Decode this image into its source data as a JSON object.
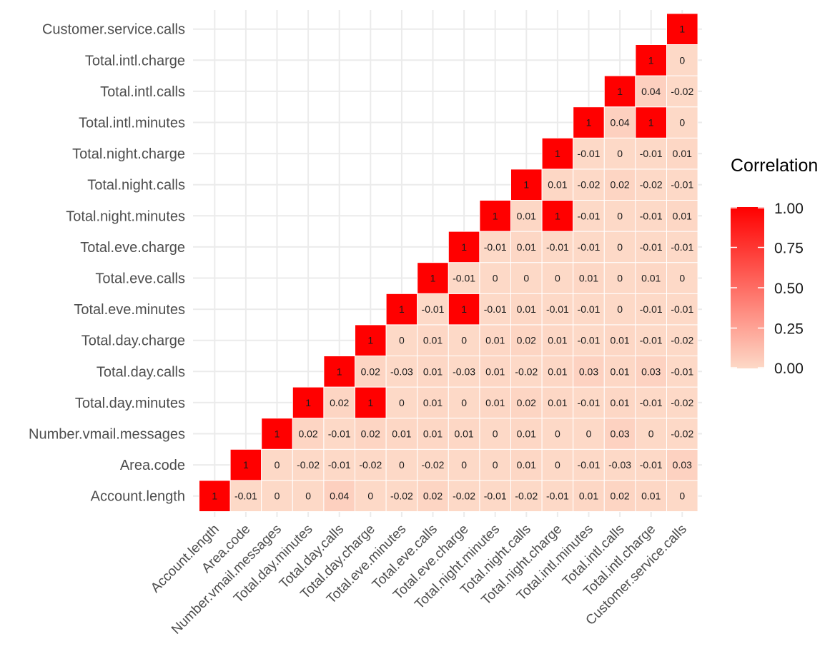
{
  "chart_data": {
    "type": "heatmap",
    "variables": [
      "Account.length",
      "Area.code",
      "Number.vmail.messages",
      "Total.day.minutes",
      "Total.day.calls",
      "Total.day.charge",
      "Total.eve.minutes",
      "Total.eve.calls",
      "Total.eve.charge",
      "Total.night.minutes",
      "Total.night.calls",
      "Total.night.charge",
      "Total.intl.minutes",
      "Total.intl.calls",
      "Total.intl.charge",
      "Customer.service.calls"
    ],
    "upper_triangle_rows": [
      [
        "1",
        "-0.01",
        "0",
        "0",
        "0.04",
        "0",
        "-0.02",
        "0.02",
        "-0.02",
        "-0.01",
        "-0.02",
        "-0.01",
        "0.01",
        "0.02",
        "0.01",
        "0"
      ],
      [
        "1",
        "0",
        "-0.02",
        "-0.01",
        "-0.02",
        "0",
        "-0.02",
        "0",
        "0",
        "0.01",
        "0",
        "-0.01",
        "-0.03",
        "-0.01",
        "0.03"
      ],
      [
        "1",
        "0.02",
        "-0.01",
        "0.02",
        "0.01",
        "0.01",
        "0.01",
        "0",
        "0.01",
        "0",
        "0",
        "0.03",
        "0",
        "-0.02"
      ],
      [
        "1",
        "0.02",
        "1",
        "0",
        "0.01",
        "0",
        "0.01",
        "0.02",
        "0.01",
        "-0.01",
        "0.01",
        "-0.01",
        "-0.02"
      ],
      [
        "1",
        "0.02",
        "-0.03",
        "0.01",
        "-0.03",
        "0.01",
        "-0.02",
        "0.01",
        "0.03",
        "0.01",
        "0.03",
        "-0.01"
      ],
      [
        "1",
        "0",
        "0.01",
        "0",
        "0.01",
        "0.02",
        "0.01",
        "-0.01",
        "0.01",
        "-0.01",
        "-0.02"
      ],
      [
        "1",
        "-0.01",
        "1",
        "-0.01",
        "0.01",
        "-0.01",
        "-0.01",
        "0",
        "-0.01",
        "-0.01"
      ],
      [
        "1",
        "-0.01",
        "0",
        "0",
        "0",
        "0.01",
        "0",
        "0.01",
        "0"
      ],
      [
        "1",
        "-0.01",
        "0.01",
        "-0.01",
        "-0.01",
        "0",
        "-0.01",
        "-0.01"
      ],
      [
        "1",
        "0.01",
        "1",
        "-0.01",
        "0",
        "-0.01",
        "0.01"
      ],
      [
        "1",
        "0.01",
        "-0.02",
        "0.02",
        "-0.02",
        "-0.01"
      ],
      [
        "1",
        "-0.01",
        "0",
        "-0.01",
        "0.01"
      ],
      [
        "1",
        "0.04",
        "1",
        "0"
      ],
      [
        "1",
        "0.04",
        "-0.02"
      ],
      [
        "1",
        "0"
      ],
      [
        "1"
      ]
    ],
    "legend": {
      "title": "Correlation",
      "ticks": [
        "1.00",
        "0.75",
        "0.50",
        "0.25",
        "0.00"
      ],
      "range": [
        0,
        1
      ]
    },
    "colors": {
      "low": "#fdd9c7",
      "high": "#ff0000",
      "grid": "#ebebeb"
    },
    "grid": true
  }
}
